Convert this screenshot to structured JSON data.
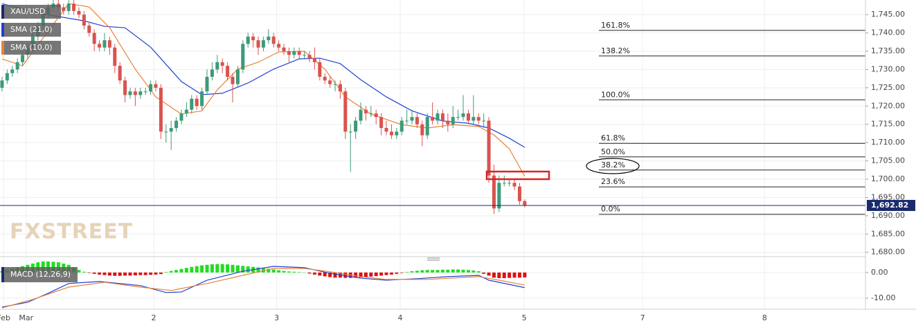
{
  "chart_data": [
    {
      "type": "candlestick",
      "name": "XAU/USD",
      "legend_color": "#1a2a6c",
      "up_color": "#3d9a78",
      "down_color": "#d9534f",
      "xlim": [
        -0.4,
        168.5
      ],
      "ylim": [
        1679,
        1749
      ],
      "grid": true,
      "xticks": [
        {
          "value": 0.3,
          "label": "Feb"
        },
        {
          "value": 4.7,
          "label": "Mar"
        },
        {
          "value": 29.6,
          "label": "2"
        },
        {
          "value": 53.6,
          "label": "3"
        },
        {
          "value": 77.7,
          "label": "4"
        },
        {
          "value": 101.9,
          "label": "5"
        },
        {
          "value": 125.0,
          "label": "7"
        },
        {
          "value": 148.8,
          "label": "8"
        }
      ],
      "yticks": [
        {
          "value": 1745,
          "label": "1,745.00"
        },
        {
          "value": 1740,
          "label": "1,740.00"
        },
        {
          "value": 1735,
          "label": "1,735.00"
        },
        {
          "value": 1730,
          "label": "1,730.00"
        },
        {
          "value": 1725,
          "label": "1,725.00"
        },
        {
          "value": 1720,
          "label": "1,720.00"
        },
        {
          "value": 1715,
          "label": "1,715.00"
        },
        {
          "value": 1710,
          "label": "1,710.00"
        },
        {
          "value": 1705,
          "label": "1,705.00"
        },
        {
          "value": 1700,
          "label": "1,700.00"
        },
        {
          "value": 1695,
          "label": "1,695.00"
        },
        {
          "value": 1690,
          "label": "1,690.00"
        },
        {
          "value": 1685,
          "label": "1,685.00"
        },
        {
          "value": 1680,
          "label": "1,680.00"
        }
      ],
      "last_price": {
        "value": 1692.82,
        "label": "1,692.82"
      },
      "watermark": "FXSTREET",
      "ohlc": [
        [
          1725,
          1728,
          1724,
          1727
        ],
        [
          1727,
          1730,
          1726,
          1729
        ],
        [
          1729,
          1731,
          1728,
          1730
        ],
        [
          1730,
          1733,
          1729,
          1732
        ],
        [
          1732,
          1735,
          1731,
          1734
        ],
        [
          1734,
          1737,
          1733,
          1736
        ],
        [
          1736,
          1740,
          1735,
          1739
        ],
        [
          1739,
          1743,
          1738,
          1742
        ],
        [
          1742,
          1746,
          1741,
          1745
        ],
        [
          1745,
          1748,
          1744,
          1747
        ],
        [
          1747,
          1749,
          1746,
          1748
        ],
        [
          1748,
          1749,
          1746,
          1747
        ],
        [
          1747,
          1748,
          1745,
          1746
        ],
        [
          1746,
          1749,
          1745,
          1748
        ],
        [
          1748,
          1749,
          1745,
          1746
        ],
        [
          1746,
          1747,
          1744,
          1745
        ],
        [
          1745,
          1746,
          1741,
          1742
        ],
        [
          1742,
          1743,
          1739,
          1740
        ],
        [
          1740,
          1741,
          1735,
          1737
        ],
        [
          1737,
          1738,
          1735,
          1736
        ],
        [
          1736,
          1740,
          1735,
          1738
        ],
        [
          1738,
          1739,
          1734,
          1736
        ],
        [
          1736,
          1737,
          1729,
          1731
        ],
        [
          1731,
          1732,
          1726,
          1727
        ],
        [
          1727,
          1728,
          1721,
          1723
        ],
        [
          1723,
          1725,
          1722,
          1724
        ],
        [
          1724,
          1725,
          1720,
          1723
        ],
        [
          1723,
          1725,
          1722,
          1724
        ],
        [
          1724,
          1725,
          1723,
          1724
        ],
        [
          1724,
          1727,
          1723,
          1726
        ],
        [
          1726,
          1727,
          1724,
          1725
        ],
        [
          1725,
          1726,
          1711,
          1713
        ],
        [
          1713,
          1715,
          1710,
          1713
        ],
        [
          1713,
          1716,
          1708,
          1714
        ],
        [
          1714,
          1717,
          1713,
          1716
        ],
        [
          1716,
          1719,
          1715,
          1718
        ],
        [
          1718,
          1721,
          1717,
          1719
        ],
        [
          1719,
          1723,
          1718,
          1722
        ],
        [
          1722,
          1723,
          1719,
          1720
        ],
        [
          1720,
          1725,
          1719,
          1724
        ],
        [
          1724,
          1730,
          1723,
          1728
        ],
        [
          1728,
          1732,
          1727,
          1730
        ],
        [
          1730,
          1734,
          1729,
          1732
        ],
        [
          1732,
          1733,
          1729,
          1731
        ],
        [
          1731,
          1732,
          1727,
          1728
        ],
        [
          1728,
          1729,
          1721,
          1726
        ],
        [
          1726,
          1731,
          1725,
          1730
        ],
        [
          1730,
          1738,
          1729,
          1737
        ],
        [
          1737,
          1740,
          1736,
          1739
        ],
        [
          1739,
          1740,
          1736,
          1738
        ],
        [
          1738,
          1739,
          1734,
          1736
        ],
        [
          1736,
          1739,
          1735,
          1738
        ],
        [
          1738,
          1741,
          1737,
          1739
        ],
        [
          1739,
          1740,
          1736,
          1737
        ],
        [
          1737,
          1738,
          1735,
          1736
        ],
        [
          1736,
          1737,
          1734,
          1735
        ],
        [
          1735,
          1736,
          1732,
          1734
        ],
        [
          1734,
          1736,
          1733,
          1735
        ],
        [
          1735,
          1736,
          1733,
          1734
        ],
        [
          1734,
          1735,
          1733,
          1734
        ],
        [
          1734,
          1735,
          1732,
          1733
        ],
        [
          1733,
          1736,
          1730,
          1732
        ],
        [
          1732,
          1733,
          1727,
          1728
        ],
        [
          1728,
          1729,
          1726,
          1727
        ],
        [
          1727,
          1728,
          1725,
          1726
        ],
        [
          1726,
          1727,
          1724,
          1726
        ],
        [
          1726,
          1727,
          1722,
          1724
        ],
        [
          1724,
          1725,
          1711,
          1713
        ],
        [
          1713,
          1715,
          1702,
          1713
        ],
        [
          1713,
          1717,
          1711,
          1716
        ],
        [
          1716,
          1721,
          1715,
          1719
        ],
        [
          1719,
          1720,
          1716,
          1718
        ],
        [
          1718,
          1720,
          1717,
          1718
        ],
        [
          1718,
          1719,
          1715,
          1717
        ],
        [
          1717,
          1718,
          1712,
          1714
        ],
        [
          1714,
          1716,
          1712,
          1713
        ],
        [
          1713,
          1715,
          1711,
          1712
        ],
        [
          1712,
          1714,
          1711,
          1713
        ],
        [
          1713,
          1717,
          1712,
          1716
        ],
        [
          1716,
          1719,
          1715,
          1716
        ],
        [
          1716,
          1719,
          1715,
          1717
        ],
        [
          1717,
          1718,
          1714,
          1715
        ],
        [
          1715,
          1716,
          1709,
          1712
        ],
        [
          1712,
          1718,
          1711,
          1717
        ],
        [
          1717,
          1721,
          1715,
          1716
        ],
        [
          1716,
          1719,
          1715,
          1718
        ],
        [
          1718,
          1719,
          1714,
          1716
        ],
        [
          1716,
          1718,
          1713,
          1715
        ],
        [
          1715,
          1720,
          1714,
          1717
        ],
        [
          1717,
          1719,
          1716,
          1717
        ],
        [
          1717,
          1723,
          1716,
          1718
        ],
        [
          1718,
          1719,
          1715,
          1716
        ],
        [
          1716,
          1723,
          1715,
          1717
        ],
        [
          1717,
          1718,
          1715,
          1716
        ],
        [
          1716,
          1718,
          1714,
          1716
        ],
        [
          1716,
          1717,
          1699,
          1701
        ],
        [
          1701,
          1704,
          1690.5,
          1692
        ],
        [
          1692,
          1701,
          1691,
          1699
        ],
        [
          1699,
          1701,
          1698,
          1699
        ],
        [
          1699,
          1700,
          1698,
          1699
        ],
        [
          1699,
          1700,
          1697,
          1698
        ],
        [
          1698,
          1699,
          1693,
          1694
        ],
        [
          1694,
          1694.5,
          1692.3,
          1692.8
        ]
      ],
      "series": [
        {
          "name": "SMA (21,0)",
          "color": "#1f3fd6",
          "x": [
            0,
            8,
            16,
            20,
            24,
            29,
            35,
            39,
            43,
            48,
            53,
            58,
            62,
            66,
            70,
            75,
            80,
            86,
            91,
            95,
            99,
            102
          ],
          "values": [
            1748,
            1745.2,
            1743.3,
            1741.8,
            1741.4,
            1736.1,
            1726.7,
            1723.1,
            1723.5,
            1726.3,
            1730.1,
            1732.9,
            1733.1,
            1731.6,
            1727.2,
            1722.5,
            1718.7,
            1715.9,
            1715.3,
            1714.0,
            1711.2,
            1708.7
          ]
        },
        {
          "name": "SMA (10,0)",
          "color": "#e8833a",
          "x": [
            0,
            4,
            8,
            13,
            17,
            21,
            26,
            30,
            35,
            39,
            42,
            46,
            50,
            54,
            59,
            63,
            67,
            72,
            78,
            83,
            88,
            93,
            96,
            99,
            102
          ],
          "values": [
            1732.9,
            1731.0,
            1738.6,
            1748.0,
            1747.1,
            1741.4,
            1730.1,
            1722.5,
            1717.8,
            1718.7,
            1724.4,
            1730.1,
            1732.0,
            1734.8,
            1735.0,
            1730.1,
            1722.5,
            1717.8,
            1714.9,
            1714.0,
            1714.9,
            1714.4,
            1712.1,
            1708.3,
            1700.8
          ]
        }
      ],
      "fib_levels": [
        {
          "label": "161.8%",
          "value": 1740.7
        },
        {
          "label": "138.2%",
          "value": 1733.7
        },
        {
          "label": "100.0%",
          "value": 1721.7
        },
        {
          "label": "61.8%",
          "value": 1709.8
        },
        {
          "label": "50.0%",
          "value": 1706.1
        },
        {
          "label": "38.2%",
          "value": 1702.5
        },
        {
          "label": "23.6%",
          "value": 1697.9
        },
        {
          "label": "0.0%",
          "value": 1690.4
        }
      ]
    },
    {
      "type": "macd",
      "name": "MACD (12,26,9)",
      "legend_color": "#1a2a6c",
      "ylim": [
        -13.8,
        4.3
      ],
      "yticks": [
        {
          "value": 0,
          "label": "0.00"
        },
        {
          "value": -10,
          "label": "-10.00"
        }
      ],
      "histogram": {
        "positive_color": "#22dd22",
        "negative_color": "#e01010",
        "values": [
          0.5,
          1,
          1.5,
          2,
          2.5,
          3,
          3.5,
          4,
          4.3,
          4.3,
          4.2,
          4,
          3.5,
          3,
          2,
          1,
          0.3,
          -0.2,
          -0.5,
          -0.8,
          -1,
          -1.2,
          -1.3,
          -1.3,
          -1.2,
          -1.2,
          -1.1,
          -1,
          -1,
          -0.9,
          -0.8,
          -0.6,
          0.2,
          0.6,
          1,
          1.4,
          1.8,
          2.2,
          2.5,
          2.8,
          3,
          3.2,
          3.3,
          3.3,
          3.2,
          3,
          2.8,
          2.6,
          2.4,
          2.2,
          2,
          1.8,
          1.5,
          1.2,
          0.9,
          0.6,
          0.4,
          0.3,
          0.2,
          0,
          -0.4,
          -0.8,
          -1.2,
          -1.5,
          -1.8,
          -2,
          -2,
          -2.1,
          -2.1,
          -2,
          -1.9,
          -1.8,
          -1.6,
          -1.4,
          -1.2,
          -1,
          -0.8,
          -0.5,
          -0.2,
          0.2,
          0.5,
          0.7,
          0.9,
          1,
          1,
          1,
          1.1,
          1.1,
          1.2,
          1.2,
          1.1,
          1,
          0.8,
          0.5,
          -0.5,
          -1.2,
          -2,
          -2.2,
          -2.2,
          -2.1,
          -2,
          -2,
          -1.9
        ]
      },
      "series": [
        {
          "color": "#1f3fd6",
          "x": [
            0,
            5,
            9,
            13,
            19,
            27,
            32,
            35,
            40,
            47,
            53,
            59,
            64,
            70,
            75,
            81,
            87,
            93,
            95,
            102
          ],
          "values": [
            -13.5,
            -11.6,
            -8.1,
            -4.3,
            -3.5,
            -5.1,
            -7.8,
            -7.6,
            -3.0,
            0.5,
            2.4,
            1.9,
            -0.3,
            -2.2,
            -3.0,
            -2.4,
            -1.6,
            -1.1,
            -3.0,
            -5.9
          ]
        },
        {
          "color": "#e8833a",
          "x": [
            0,
            6,
            13,
            20,
            27,
            33,
            40,
            47,
            53,
            59,
            64,
            70,
            75,
            83,
            93,
            97,
            102
          ],
          "values": [
            -13.8,
            -10.5,
            -5.7,
            -3.8,
            -5.7,
            -7.0,
            -4.3,
            -1.1,
            1.6,
            1.6,
            0.3,
            -1.6,
            -2.7,
            -2.7,
            -1.6,
            -3.0,
            -4.9
          ]
        }
      ]
    }
  ]
}
